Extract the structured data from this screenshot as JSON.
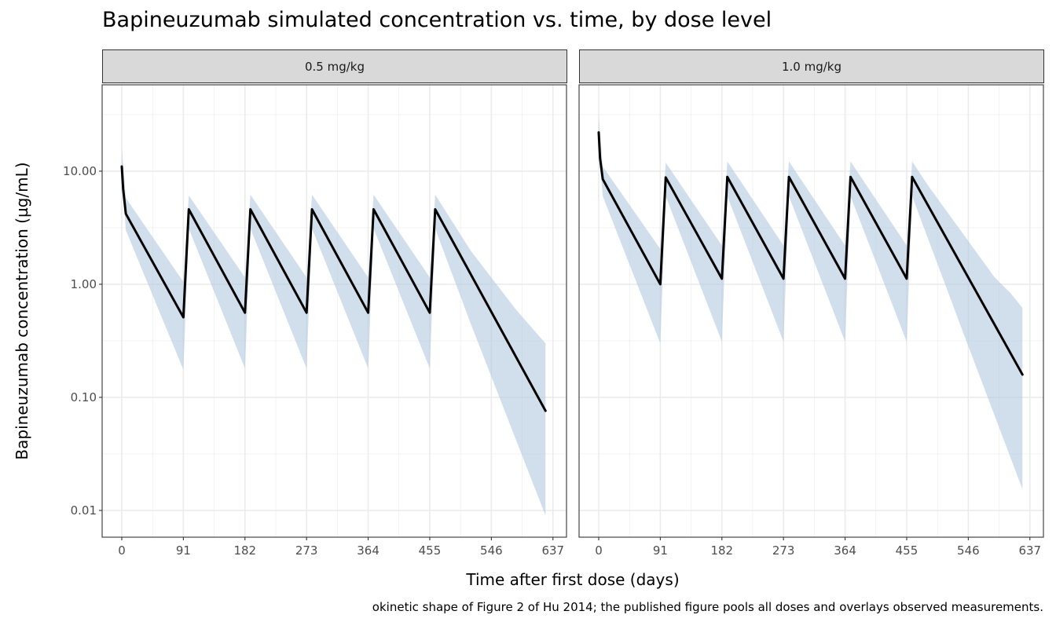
{
  "chart_data": {
    "type": "line",
    "title": "Bapineuzumab simulated concentration vs. time, by dose level",
    "xlabel": "Time after first dose (days)",
    "ylabel": "Bapineuzumab concentration (µg/mL)",
    "caption": "okinetic shape of Figure 2 of Hu 2014; the published figure pools all doses and overlays observed measurements.",
    "x_ticks": [
      0,
      91,
      182,
      273,
      364,
      455,
      546,
      637
    ],
    "y_ticks": [
      0.01,
      0.1,
      1,
      10
    ],
    "y_tick_labels": [
      "0.01",
      "0.10",
      "1.00",
      "10.00"
    ],
    "y_scale": "log10",
    "xlim": [
      -29,
      657
    ],
    "ylim": [
      0.0058,
      58
    ],
    "grid": true,
    "band_color": "#b3c9e1",
    "line_color": "#000000",
    "panels": [
      {
        "label": "0.5 mg/kg",
        "median": [
          [
            0,
            11
          ],
          [
            2,
            7
          ],
          [
            6,
            4.2
          ],
          [
            91,
            0.51
          ],
          [
            99,
            4.6
          ],
          [
            182,
            0.56
          ],
          [
            190,
            4.6
          ],
          [
            273,
            0.56
          ],
          [
            281,
            4.6
          ],
          [
            364,
            0.56
          ],
          [
            372,
            4.6
          ],
          [
            455,
            0.56
          ],
          [
            463,
            4.6
          ],
          [
            626,
            0.076
          ]
        ],
        "upper": [
          [
            0,
            16
          ],
          [
            6,
            5.8
          ],
          [
            91,
            1.05
          ],
          [
            99,
            6.1
          ],
          [
            182,
            1.15
          ],
          [
            190,
            6.2
          ],
          [
            273,
            1.15
          ],
          [
            281,
            6.2
          ],
          [
            364,
            1.15
          ],
          [
            372,
            6.2
          ],
          [
            455,
            1.15
          ],
          [
            463,
            6.2
          ],
          [
            516,
            1.96
          ],
          [
            583,
            0.59
          ],
          [
            626,
            0.3
          ]
        ],
        "lower": [
          [
            0,
            9
          ],
          [
            6,
            3.0
          ],
          [
            91,
            0.175
          ],
          [
            99,
            3.1
          ],
          [
            182,
            0.18
          ],
          [
            190,
            3.1
          ],
          [
            273,
            0.18
          ],
          [
            281,
            3.1
          ],
          [
            364,
            0.18
          ],
          [
            372,
            3.1
          ],
          [
            455,
            0.18
          ],
          [
            463,
            3.1
          ],
          [
            516,
            0.44
          ],
          [
            626,
            0.009
          ]
        ]
      },
      {
        "label": "1.0 mg/kg",
        "median": [
          [
            0,
            22
          ],
          [
            2,
            13
          ],
          [
            6,
            8.5
          ],
          [
            91,
            1.0
          ],
          [
            99,
            8.8
          ],
          [
            182,
            1.12
          ],
          [
            190,
            8.9
          ],
          [
            273,
            1.12
          ],
          [
            281,
            8.9
          ],
          [
            364,
            1.12
          ],
          [
            372,
            8.9
          ],
          [
            455,
            1.12
          ],
          [
            463,
            8.9
          ],
          [
            626,
            0.159
          ]
        ],
        "upper": [
          [
            0,
            30
          ],
          [
            6,
            11
          ],
          [
            91,
            2.05
          ],
          [
            99,
            11.9
          ],
          [
            182,
            2.2
          ],
          [
            190,
            12.2
          ],
          [
            273,
            2.2
          ],
          [
            281,
            12.2
          ],
          [
            364,
            2.2
          ],
          [
            372,
            12.2
          ],
          [
            455,
            2.2
          ],
          [
            463,
            12.2
          ],
          [
            487,
            7.4
          ],
          [
            585,
            1.15
          ],
          [
            608,
            0.84
          ],
          [
            626,
            0.62
          ]
        ],
        "lower": [
          [
            0,
            15
          ],
          [
            6,
            6.0
          ],
          [
            91,
            0.3
          ],
          [
            99,
            6.0
          ],
          [
            182,
            0.31
          ],
          [
            190,
            6.0
          ],
          [
            273,
            0.31
          ],
          [
            281,
            6.0
          ],
          [
            364,
            0.31
          ],
          [
            372,
            6.0
          ],
          [
            455,
            0.31
          ],
          [
            463,
            6.0
          ],
          [
            538,
            0.38
          ],
          [
            626,
            0.0154
          ]
        ]
      }
    ]
  }
}
